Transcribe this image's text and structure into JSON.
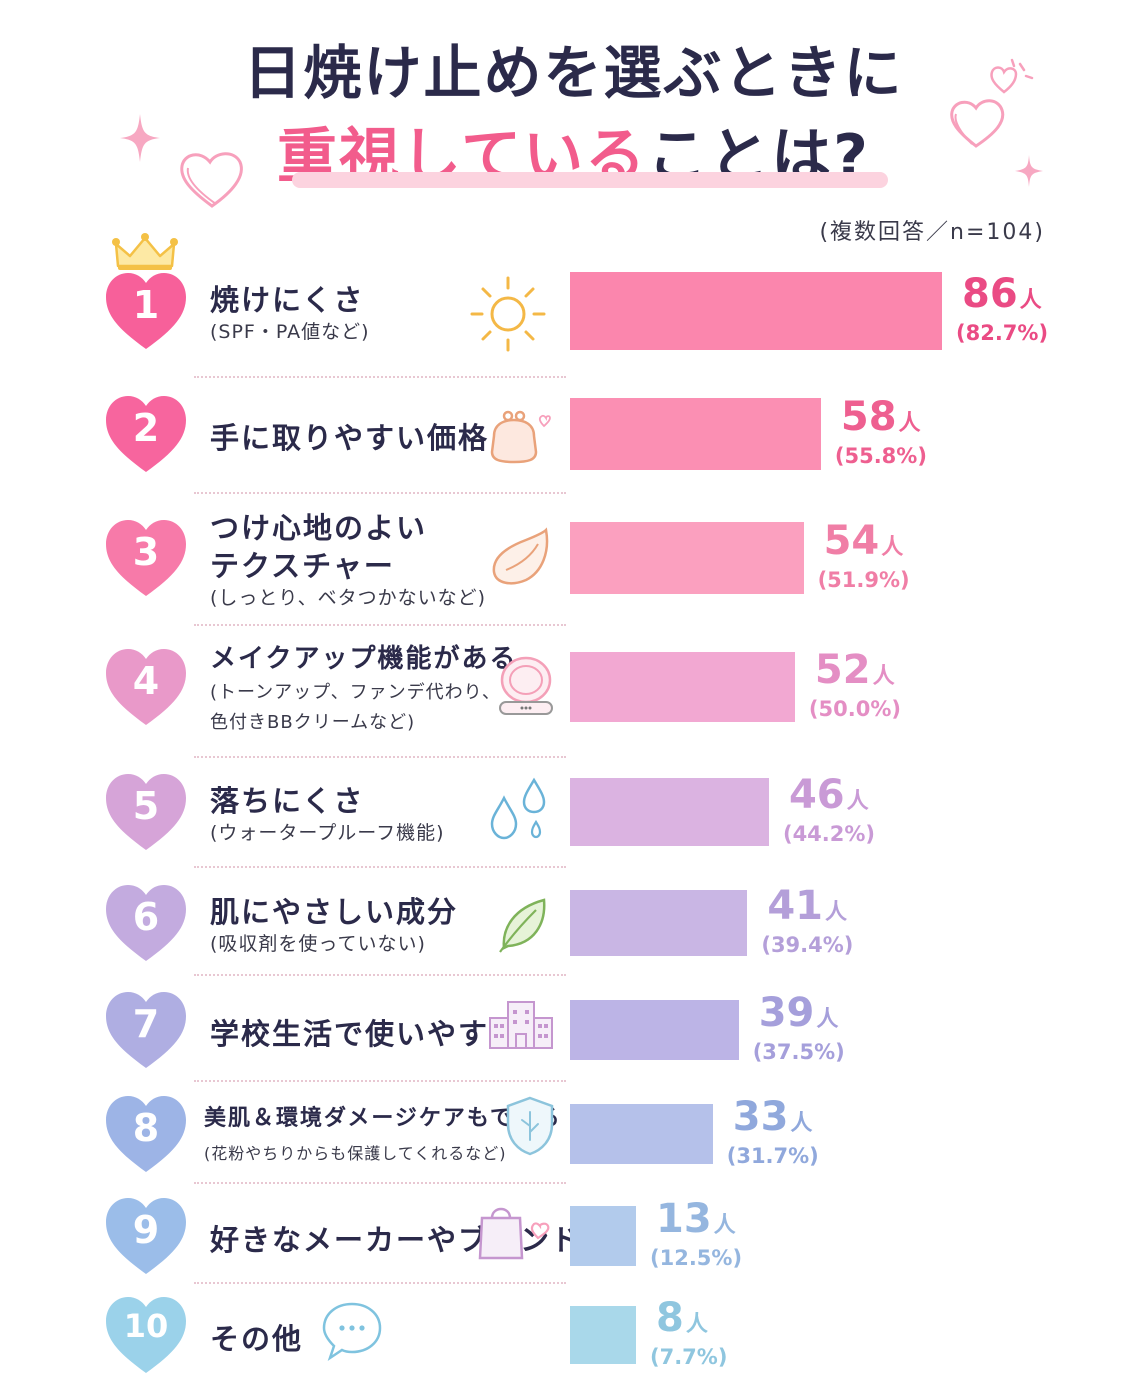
{
  "header": {
    "title_line1": "日焼け止めを選ぶときに",
    "title_line2_highlight": "重視している",
    "title_line2_rest": "ことは?",
    "note": "(複数回答／n=104)"
  },
  "colors": {
    "rank": [
      "#f7609a",
      "#f7659e",
      "#f77aa9",
      "#e999c9",
      "#d6a4d8",
      "#c3abdf",
      "#afaee2",
      "#9db4e6",
      "#9bbde9",
      "#9bd2ea"
    ],
    "bar": [
      "#fb86ad",
      "#fb8fb3",
      "#fba0bf",
      "#f2a8d2",
      "#dbb3e1",
      "#c9b6e4",
      "#bcb4e6",
      "#b5c1ea",
      "#b2cbec",
      "#a9d8ea"
    ],
    "text": [
      "#ea4b84",
      "#ee5f90",
      "#f07ea6",
      "#e48ec4",
      "#c99ad6",
      "#b49fd9",
      "#a59fdb",
      "#90a8dc",
      "#95b6df",
      "#8fc6df"
    ]
  },
  "chart_data": {
    "type": "bar",
    "orientation": "horizontal",
    "categories": [
      "焼けにくさ",
      "手に取りやすい価格",
      "つけ心地のよいテクスチャー",
      "メイクアップ機能がある",
      "落ちにくさ",
      "肌にやさしい成分",
      "学校生活で使いやすい",
      "美肌＆環境ダメージケアもできる",
      "好きなメーカーやブランド",
      "その他"
    ],
    "values": [
      86,
      58,
      54,
      52,
      46,
      41,
      39,
      33,
      13,
      8
    ],
    "percent": [
      82.7,
      55.8,
      51.9,
      50.0,
      44.2,
      39.4,
      37.5,
      31.7,
      12.5,
      7.7
    ],
    "unit": "人",
    "n": 104
  },
  "items": [
    {
      "rank": "1",
      "lines": [
        "焼けにくさ"
      ],
      "subs": [
        "(SPF・PA値など)"
      ],
      "icon": "sun-icon",
      "count": "86",
      "unit": "人",
      "pct": "(82.7%)"
    },
    {
      "rank": "2",
      "lines": [
        "手に取りやすい価格"
      ],
      "subs": [],
      "icon": "coin-purse-icon",
      "count": "58",
      "unit": "人",
      "pct": "(55.8%)"
    },
    {
      "rank": "3",
      "lines": [
        "つけ心地のよい",
        "テクスチャー"
      ],
      "subs": [
        "(しっとり、ベタつかないなど)"
      ],
      "icon": "cream-swatch-icon",
      "count": "54",
      "unit": "人",
      "pct": "(51.9%)"
    },
    {
      "rank": "4",
      "lines": [
        "メイクアップ機能がある"
      ],
      "subs": [
        "(トーンアップ、ファンデ代わり、",
        "色付きBBクリームなど)"
      ],
      "icon": "compact-icon",
      "count": "52",
      "unit": "人",
      "pct": "(50.0%)"
    },
    {
      "rank": "5",
      "lines": [
        "落ちにくさ"
      ],
      "subs": [
        "(ウォータープルーフ機能)"
      ],
      "icon": "water-drops-icon",
      "count": "46",
      "unit": "人",
      "pct": "(44.2%)"
    },
    {
      "rank": "6",
      "lines": [
        "肌にやさしい成分"
      ],
      "subs": [
        "(吸収剤を使っていない)"
      ],
      "icon": "leaf-icon",
      "count": "41",
      "unit": "人",
      "pct": "(39.4%)"
    },
    {
      "rank": "7",
      "lines": [
        "学校生活で使いやすい"
      ],
      "subs": [],
      "icon": "school-icon",
      "count": "39",
      "unit": "人",
      "pct": "(37.5%)"
    },
    {
      "rank": "8",
      "lines": [
        "美肌＆環境ダメージケアもできる"
      ],
      "subs": [
        "(花粉やちりからも保護してくれるなど)"
      ],
      "icon": "shield-icon",
      "count": "33",
      "unit": "人",
      "pct": "(31.7%)"
    },
    {
      "rank": "9",
      "lines": [
        "好きなメーカーやブランド"
      ],
      "subs": [],
      "icon": "shopping-bag-icon",
      "count": "13",
      "unit": "人",
      "pct": "(12.5%)"
    },
    {
      "rank": "10",
      "lines": [
        "その他"
      ],
      "subs": [],
      "icon": "speech-bubble-icon",
      "count": "8",
      "unit": "人",
      "pct": "(7.7%)"
    }
  ]
}
